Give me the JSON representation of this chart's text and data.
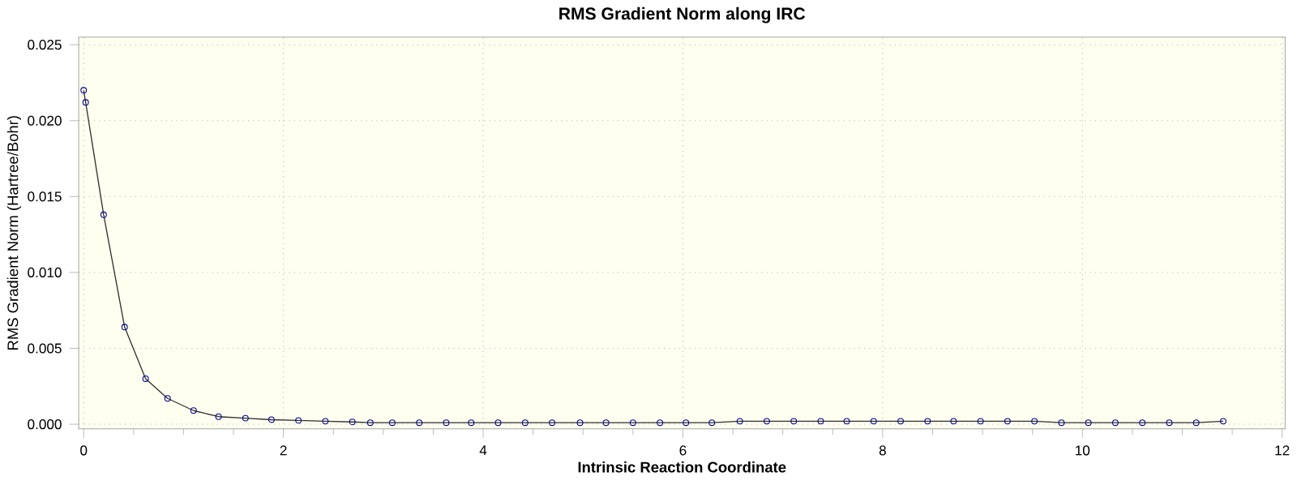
{
  "chart_data": {
    "type": "line",
    "title": "RMS Gradient Norm along IRC",
    "xlabel": "Intrinsic Reaction Coordinate",
    "ylabel": "RMS Gradient Norm (Hartree/Bohr)",
    "xlim": [
      -0.05,
      12.03
    ],
    "ylim": [
      -0.0003,
      0.0255
    ],
    "xticks": [
      0,
      2,
      4,
      6,
      8,
      10,
      12
    ],
    "yticks": [
      {
        "value": 0,
        "label": "0.000"
      },
      {
        "value": 0.005,
        "label": "0.005"
      },
      {
        "value": 0.01,
        "label": "0.010"
      },
      {
        "value": 0.015,
        "label": "0.015"
      },
      {
        "value": 0.02,
        "label": "0.020"
      },
      {
        "value": 0.025,
        "label": "0.025"
      }
    ],
    "grid": true,
    "marker": "circle",
    "line_style": "solid",
    "series": [
      {
        "color": "#303030",
        "x": [
          0,
          0.02,
          0.2,
          0.41,
          0.62,
          0.84,
          1.1,
          1.35,
          1.62,
          1.88,
          2.15,
          2.42,
          2.69,
          2.87,
          3.09,
          3.36,
          3.63,
          3.88,
          4.15,
          4.42,
          4.69,
          4.97,
          5.23,
          5.5,
          5.77,
          6.03,
          6.29,
          6.57,
          6.84,
          7.11,
          7.38,
          7.64,
          7.91,
          8.18,
          8.45,
          8.71,
          8.98,
          9.25,
          9.52,
          9.79,
          10.06,
          10.33,
          10.6,
          10.87,
          11.14,
          11.41
        ],
        "values": [
          0.022,
          0.0212,
          0.0138,
          0.0064,
          0.003,
          0.0017,
          0.0009,
          0.0005,
          0.0004,
          0.0003,
          0.00025,
          0.0002,
          0.00015,
          0.0001,
          0.0001,
          0.0001,
          0.0001,
          0.0001,
          0.0001,
          0.0001,
          0.0001,
          0.0001,
          0.0001,
          0.0001,
          0.0001,
          0.0001,
          0.0001,
          0.0002,
          0.0002,
          0.0002,
          0.0002,
          0.0002,
          0.0002,
          0.0002,
          0.0002,
          0.0002,
          0.0002,
          0.0002,
          0.0002,
          0.0001,
          0.0001,
          0.0001,
          0.0001,
          0.0001,
          0.0001,
          0.0002
        ]
      }
    ]
  }
}
